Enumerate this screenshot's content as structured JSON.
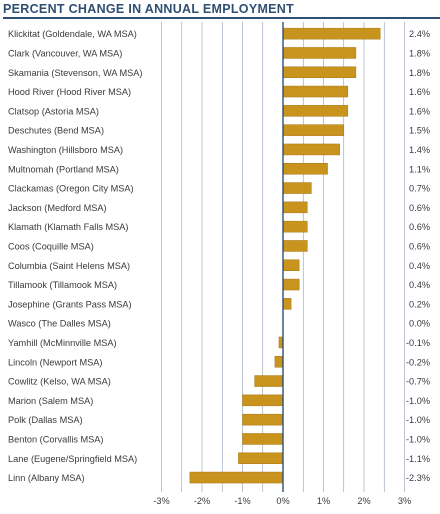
{
  "chart_data": {
    "type": "bar",
    "orientation": "horizontal",
    "title": "PERCENT CHANGE IN ANNUAL EMPLOYMENT",
    "categories": [
      "Klickitat (Goldendale, WA MSA)",
      "Clark (Vancouver, WA MSA)",
      "Skamania (Stevenson, WA MSA)",
      "Hood River (Hood River MSA)",
      "Clatsop (Astoria MSA)",
      "Deschutes (Bend MSA)",
      "Washington (Hillsboro MSA)",
      "Multnomah (Portland MSA)",
      "Clackamas (Oregon City MSA)",
      "Jackson (Medford MSA)",
      "Klamath (Klamath Falls MSA)",
      "Coos (Coquille MSA)",
      "Columbia (Saint Helens MSA)",
      "Tillamook (Tillamook MSA)",
      "Josephine (Grants Pass MSA)",
      "Wasco (The Dalles MSA)",
      "Yamhill (McMinnville MSA)",
      "Lincoln (Newport MSA)",
      "Cowlitz (Kelso, WA MSA)",
      "Marion (Salem MSA)",
      "Polk (Dallas MSA)",
      "Benton (Corvallis MSA)",
      "Lane (Eugene/Springfield MSA)",
      "Linn (Albany MSA)"
    ],
    "values": [
      2.4,
      1.8,
      1.8,
      1.6,
      1.6,
      1.5,
      1.4,
      1.1,
      0.7,
      0.6,
      0.6,
      0.6,
      0.4,
      0.4,
      0.2,
      0.0,
      -0.1,
      -0.2,
      -0.7,
      -1.0,
      -1.0,
      -1.0,
      -1.1,
      -2.3
    ],
    "value_labels": [
      "2.4%",
      "1.8%",
      "1.8%",
      "1.6%",
      "1.6%",
      "1.5%",
      "1.4%",
      "1.1%",
      "0.7%",
      "0.6%",
      "0.6%",
      "0.6%",
      "0.4%",
      "0.4%",
      "0.2%",
      "0.0%",
      "-0.1%",
      "-0.2%",
      "-0.7%",
      "-1.0%",
      "-1.0%",
      "-1.0%",
      "-1.1%",
      "-2.3%"
    ],
    "x_ticks": [
      -3,
      -2,
      -1,
      0,
      1,
      2,
      3
    ],
    "x_tick_labels": [
      "-3%",
      "-2%",
      "-1%",
      "0%",
      "1%",
      "2%",
      "3%"
    ],
    "xlim": [
      -3,
      3
    ],
    "grid": true,
    "colors": {
      "bar": "#c8941e",
      "bar_edge": "#a9781a",
      "title": "#2f4f73",
      "grid": "#2f4f73",
      "text": "#3a3a3a"
    }
  }
}
